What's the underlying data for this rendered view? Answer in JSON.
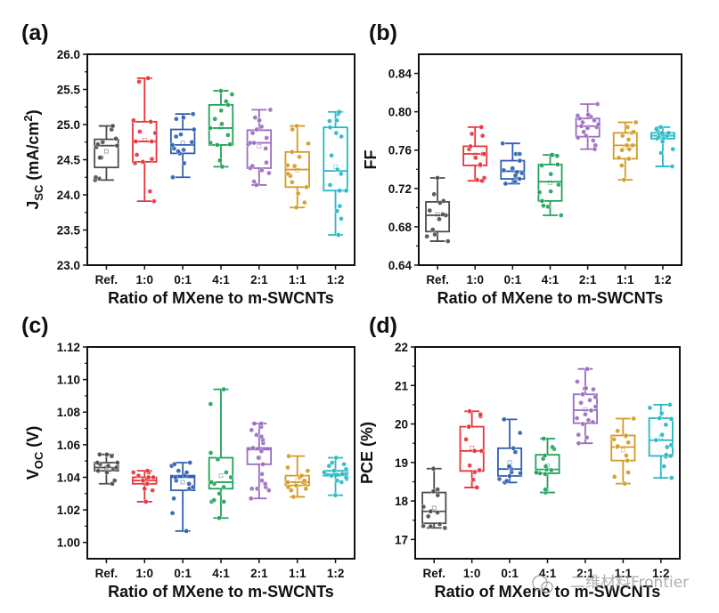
{
  "figure": {
    "watermark": "二维材料Frontier",
    "palette": {
      "Ref.": "#4d4d4d",
      "1:0": "#e8333a",
      "0:1": "#2f5fb0",
      "4:1": "#22a15a",
      "2:1": "#9b6cbf",
      "1:1": "#d49a22",
      "1:2": "#25b8c4"
    }
  },
  "chart_data": [
    {
      "panel": "(a)",
      "type": "box",
      "title": "",
      "xlabel": "Ratio of MXene to m-SWCNTs",
      "ylabel": "J",
      "ylabel_sub": "SC",
      "ylabel_unit": " (mA/cm",
      "ylabel_sup": "2",
      "ylabel_close": ")",
      "ylim": [
        23.0,
        26.0
      ],
      "yticks": [
        23.0,
        23.5,
        24.0,
        24.5,
        25.0,
        25.5,
        26.0
      ],
      "ytick_labels": [
        "23.0",
        "23.5",
        "24.0",
        "24.5",
        "25.0",
        "25.5",
        "26.0"
      ],
      "categories": [
        "Ref.",
        "1:0",
        "0:1",
        "4:1",
        "2:1",
        "1:1",
        "1:2"
      ],
      "boxes": [
        {
          "min": 24.21,
          "q1": 24.39,
          "median": 24.7,
          "q3": 24.79,
          "max": 24.98,
          "mean": 24.62,
          "points": [
            24.21,
            24.23,
            24.25,
            24.53,
            24.53,
            24.68,
            24.7,
            24.72,
            24.75,
            24.8,
            24.93,
            24.98
          ]
        },
        {
          "min": 23.91,
          "q1": 24.47,
          "median": 24.76,
          "q3": 25.04,
          "max": 25.66,
          "mean": 24.78,
          "points": [
            23.91,
            24.05,
            24.45,
            24.47,
            24.51,
            24.57,
            24.76,
            24.76,
            24.88,
            24.9,
            25.04,
            25.06,
            25.61,
            25.66
          ]
        },
        {
          "min": 24.25,
          "q1": 24.59,
          "median": 24.71,
          "q3": 24.93,
          "max": 25.15,
          "mean": 24.74,
          "points": [
            24.25,
            24.45,
            24.59,
            24.62,
            24.64,
            24.66,
            24.71,
            24.75,
            24.83,
            24.86,
            24.93,
            25.08,
            25.1,
            25.15
          ]
        },
        {
          "min": 24.4,
          "q1": 24.71,
          "median": 24.95,
          "q3": 25.28,
          "max": 25.48,
          "mean": 24.96,
          "points": [
            24.4,
            24.49,
            24.71,
            24.72,
            24.74,
            24.85,
            24.95,
            25.01,
            25.08,
            25.2,
            25.28,
            25.33,
            25.43,
            25.48
          ]
        },
        {
          "min": 24.14,
          "q1": 24.38,
          "median": 24.74,
          "q3": 24.92,
          "max": 25.21,
          "mean": 24.69,
          "points": [
            24.14,
            24.19,
            24.31,
            24.35,
            24.38,
            24.41,
            24.46,
            24.66,
            24.72,
            24.74,
            24.74,
            24.81,
            24.88,
            24.93,
            24.97,
            25.06,
            25.1,
            25.21
          ]
        },
        {
          "min": 23.82,
          "q1": 24.11,
          "median": 24.36,
          "q3": 24.61,
          "max": 24.98,
          "mean": 24.35,
          "points": [
            23.82,
            23.89,
            24.02,
            24.11,
            24.18,
            24.27,
            24.3,
            24.41,
            24.42,
            24.54,
            24.61,
            24.73,
            24.93,
            24.98
          ]
        },
        {
          "min": 23.43,
          "q1": 24.06,
          "median": 24.34,
          "q3": 24.96,
          "max": 25.18,
          "mean": 24.4,
          "points": [
            23.43,
            23.66,
            23.77,
            23.84,
            24.06,
            24.06,
            24.14,
            24.3,
            24.36,
            24.56,
            24.83,
            24.88,
            24.96,
            25.05,
            25.06,
            25.15,
            25.18
          ]
        }
      ]
    },
    {
      "panel": "(b)",
      "type": "box",
      "title": "",
      "xlabel": "Ratio of MXene to m-SWCNTs",
      "ylabel": "FF",
      "ylabel_sub": "",
      "ylabel_unit": "",
      "ylabel_sup": "",
      "ylabel_close": "",
      "ylim": [
        0.64,
        0.86
      ],
      "yticks": [
        0.64,
        0.68,
        0.72,
        0.76,
        0.8,
        0.84
      ],
      "ytick_labels": [
        "0.64",
        "0.68",
        "0.72",
        "0.76",
        "0.80",
        "0.84"
      ],
      "categories": [
        "Ref.",
        "1:0",
        "0:1",
        "4:1",
        "2:1",
        "1:1",
        "1:2"
      ],
      "boxes": [
        {
          "min": 0.665,
          "q1": 0.675,
          "median": 0.692,
          "q3": 0.706,
          "max": 0.731,
          "mean": 0.693,
          "points": [
            0.665,
            0.67,
            0.672,
            0.677,
            0.688,
            0.692,
            0.693,
            0.697,
            0.705,
            0.707,
            0.714,
            0.731
          ]
        },
        {
          "min": 0.728,
          "q1": 0.744,
          "median": 0.756,
          "q3": 0.764,
          "max": 0.784,
          "mean": 0.755,
          "points": [
            0.728,
            0.729,
            0.731,
            0.744,
            0.745,
            0.752,
            0.756,
            0.756,
            0.761,
            0.764,
            0.775,
            0.777,
            0.784
          ]
        },
        {
          "min": 0.725,
          "q1": 0.73,
          "median": 0.738,
          "q3": 0.749,
          "max": 0.767,
          "mean": 0.74,
          "points": [
            0.725,
            0.727,
            0.73,
            0.732,
            0.734,
            0.736,
            0.737,
            0.739,
            0.741,
            0.749,
            0.756,
            0.756,
            0.767
          ]
        },
        {
          "min": 0.692,
          "q1": 0.707,
          "median": 0.727,
          "q3": 0.745,
          "max": 0.755,
          "mean": 0.726,
          "points": [
            0.692,
            0.701,
            0.702,
            0.707,
            0.716,
            0.717,
            0.724,
            0.735,
            0.744,
            0.745,
            0.754,
            0.755,
            0.755
          ]
        },
        {
          "min": 0.761,
          "q1": 0.774,
          "median": 0.785,
          "q3": 0.793,
          "max": 0.808,
          "mean": 0.784,
          "points": [
            0.761,
            0.765,
            0.77,
            0.773,
            0.775,
            0.779,
            0.783,
            0.784,
            0.785,
            0.787,
            0.789,
            0.791,
            0.793,
            0.795,
            0.796,
            0.797,
            0.808
          ]
        },
        {
          "min": 0.729,
          "q1": 0.751,
          "median": 0.765,
          "q3": 0.778,
          "max": 0.789,
          "mean": 0.763,
          "points": [
            0.729,
            0.744,
            0.751,
            0.752,
            0.76,
            0.761,
            0.765,
            0.765,
            0.771,
            0.775,
            0.778,
            0.779,
            0.784,
            0.789
          ]
        },
        {
          "min": 0.743,
          "q1": 0.772,
          "median": 0.775,
          "q3": 0.778,
          "max": 0.784,
          "mean": 0.774,
          "points": [
            0.743,
            0.757,
            0.761,
            0.769,
            0.772,
            0.773,
            0.774,
            0.775,
            0.776,
            0.777,
            0.778,
            0.778,
            0.78,
            0.782,
            0.784
          ]
        }
      ]
    },
    {
      "panel": "(c)",
      "type": "box",
      "title": "",
      "xlabel": "Ratio of MXene to m-SWCNTs",
      "ylabel": "V",
      "ylabel_sub": "OC",
      "ylabel_unit": " (V)",
      "ylabel_sup": "",
      "ylabel_close": "",
      "ylim": [
        0.99,
        1.12
      ],
      "yticks": [
        1.0,
        1.02,
        1.04,
        1.06,
        1.08,
        1.1,
        1.12
      ],
      "ytick_labels": [
        "1.00",
        "1.02",
        "1.04",
        "1.06",
        "1.08",
        "1.10",
        "1.12"
      ],
      "categories": [
        "Ref.",
        "1:0",
        "0:1",
        "4:1",
        "2:1",
        "1:1",
        "1:2"
      ],
      "boxes": [
        {
          "min": 1.036,
          "q1": 1.044,
          "median": 1.046,
          "q3": 1.049,
          "max": 1.054,
          "mean": 1.046,
          "points": [
            1.036,
            1.038,
            1.043,
            1.044,
            1.045,
            1.046,
            1.047,
            1.048,
            1.049,
            1.049,
            1.053,
            1.054,
            1.054
          ]
        },
        {
          "min": 1.025,
          "q1": 1.036,
          "median": 1.038,
          "q3": 1.04,
          "max": 1.044,
          "mean": 1.038,
          "points": [
            1.025,
            1.032,
            1.033,
            1.036,
            1.038,
            1.039,
            1.04,
            1.04,
            1.041,
            1.043,
            1.043,
            1.044
          ]
        },
        {
          "min": 1.007,
          "q1": 1.032,
          "median": 1.04,
          "q3": 1.041,
          "max": 1.049,
          "mean": 1.037,
          "points": [
            1.007,
            1.018,
            1.027,
            1.033,
            1.034,
            1.036,
            1.038,
            1.04,
            1.041,
            1.043,
            1.044,
            1.047,
            1.048,
            1.049
          ]
        },
        {
          "min": 1.015,
          "q1": 1.033,
          "median": 1.037,
          "q3": 1.052,
          "max": 1.094,
          "mean": 1.041,
          "points": [
            1.015,
            1.025,
            1.025,
            1.026,
            1.03,
            1.034,
            1.036,
            1.037,
            1.04,
            1.043,
            1.051,
            1.055,
            1.085,
            1.094
          ]
        },
        {
          "min": 1.027,
          "q1": 1.048,
          "median": 1.057,
          "q3": 1.058,
          "max": 1.073,
          "mean": 1.052,
          "points": [
            1.027,
            1.032,
            1.033,
            1.033,
            1.034,
            1.036,
            1.038,
            1.042,
            1.048,
            1.052,
            1.056,
            1.058,
            1.061,
            1.063,
            1.065,
            1.066,
            1.069,
            1.071,
            1.073,
            1.073
          ]
        },
        {
          "min": 1.028,
          "q1": 1.035,
          "median": 1.037,
          "q3": 1.041,
          "max": 1.053,
          "mean": 1.038,
          "points": [
            1.028,
            1.032,
            1.033,
            1.034,
            1.035,
            1.036,
            1.037,
            1.037,
            1.038,
            1.04,
            1.041,
            1.044,
            1.046,
            1.053
          ]
        },
        {
          "min": 1.029,
          "q1": 1.041,
          "median": 1.042,
          "q3": 1.044,
          "max": 1.052,
          "mean": 1.042,
          "points": [
            1.029,
            1.037,
            1.038,
            1.039,
            1.04,
            1.041,
            1.042,
            1.042,
            1.043,
            1.044,
            1.045,
            1.047,
            1.048,
            1.049,
            1.052
          ]
        }
      ]
    },
    {
      "panel": "(d)",
      "type": "box",
      "title": "",
      "xlabel": "Ratio of MXene to m-SWCNTs",
      "ylabel": "PCE (%)",
      "ylabel_sub": "",
      "ylabel_unit": "",
      "ylabel_sup": "",
      "ylabel_close": "",
      "ylim": [
        16.5,
        22.0
      ],
      "yticks": [
        17,
        18,
        19,
        20,
        21,
        22
      ],
      "ytick_labels": [
        "17",
        "18",
        "19",
        "20",
        "21",
        "22"
      ],
      "categories": [
        "Ref.",
        "1:0",
        "0:1",
        "4:1",
        "2:1",
        "1:1",
        "1:2"
      ],
      "boxes": [
        {
          "min": 17.3,
          "q1": 17.42,
          "median": 17.73,
          "q3": 18.22,
          "max": 18.84,
          "mean": 17.82,
          "points": [
            17.3,
            17.34,
            17.35,
            17.4,
            17.6,
            17.7,
            17.73,
            17.85,
            18.15,
            18.25,
            18.3,
            18.84
          ]
        },
        {
          "min": 18.35,
          "q1": 18.78,
          "median": 19.3,
          "q3": 19.93,
          "max": 20.33,
          "mean": 19.38,
          "points": [
            18.35,
            18.55,
            18.75,
            18.8,
            18.92,
            19.3,
            19.3,
            19.6,
            19.92,
            19.93,
            20.2,
            20.25,
            20.33
          ]
        },
        {
          "min": 18.48,
          "q1": 18.65,
          "median": 18.83,
          "q3": 19.37,
          "max": 20.12,
          "mean": 19.0,
          "points": [
            18.48,
            18.52,
            18.57,
            18.65,
            18.72,
            18.75,
            18.83,
            18.88,
            18.9,
            19.27,
            19.37,
            19.77,
            20.12
          ]
        },
        {
          "min": 18.22,
          "q1": 18.72,
          "median": 18.82,
          "q3": 19.2,
          "max": 19.62,
          "mean": 18.92,
          "points": [
            18.22,
            18.3,
            18.7,
            18.72,
            18.74,
            18.8,
            18.82,
            18.9,
            19.1,
            19.18,
            19.35,
            19.4,
            19.62
          ]
        },
        {
          "min": 19.5,
          "q1": 20.02,
          "median": 20.36,
          "q3": 20.77,
          "max": 21.43,
          "mean": 20.38,
          "points": [
            19.5,
            19.65,
            19.72,
            20.0,
            20.05,
            20.1,
            20.15,
            20.25,
            20.35,
            20.45,
            20.55,
            20.62,
            20.7,
            20.77,
            20.9,
            20.92,
            20.93,
            21.1,
            21.43
          ]
        },
        {
          "min": 18.45,
          "q1": 19.05,
          "median": 19.4,
          "q3": 19.7,
          "max": 20.14,
          "mean": 19.32,
          "points": [
            18.45,
            18.63,
            18.74,
            19.05,
            19.18,
            19.4,
            19.42,
            19.52,
            19.6,
            19.68,
            19.7,
            19.82,
            20.14
          ]
        },
        {
          "min": 18.6,
          "q1": 19.17,
          "median": 19.58,
          "q3": 20.15,
          "max": 20.5,
          "mean": 19.65,
          "points": [
            18.6,
            18.9,
            19.15,
            19.17,
            19.2,
            19.4,
            19.45,
            19.58,
            19.72,
            19.98,
            20.13,
            20.15,
            20.28,
            20.42,
            20.5
          ]
        }
      ]
    }
  ]
}
